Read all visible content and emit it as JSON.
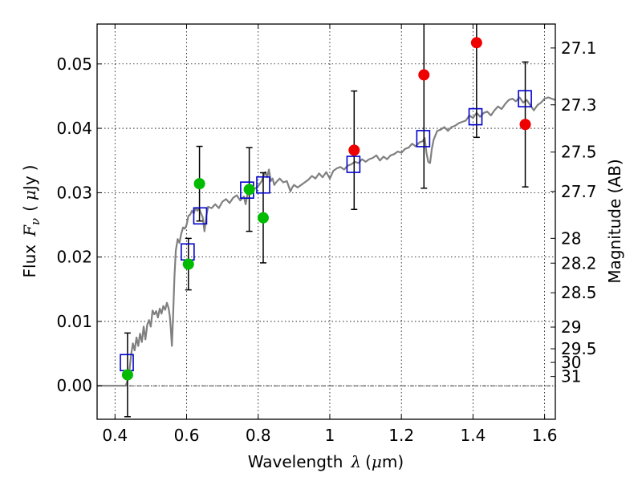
{
  "chart_data": {
    "type": "scatter",
    "title": "",
    "xlabel": "Wavelength",
    "xlabel_symbol": "λ",
    "xlabel_unit_open": "(",
    "xlabel_unit_mu": "μ",
    "xlabel_unit_rest": "m)",
    "ylabel": "Flux",
    "ylabel_symbol": "F",
    "ylabel_subscript": "ν",
    "ylabel_unit_open": "(",
    "ylabel_unit_mu": "μ",
    "ylabel_unit_rest": "Jy",
    "ylabel_unit_close": ")",
    "y2label": "Magnitude (AB)",
    "xlim": [
      0.35,
      1.63
    ],
    "ylim": [
      -0.0052,
      0.0562
    ],
    "grid": true,
    "legend": "none",
    "x_ticks": [
      0.4,
      0.6,
      0.8,
      1.0,
      1.2,
      1.4,
      1.6
    ],
    "x_tick_labels": [
      "0.4",
      "0.6",
      "0.8",
      "1",
      "1.2",
      "1.4",
      "1.6"
    ],
    "y_ticks": [
      0.0,
      0.01,
      0.02,
      0.03,
      0.04,
      0.05
    ],
    "y_tick_labels": [
      "0.00",
      "0.01",
      "0.02",
      "0.03",
      "0.04",
      "0.05"
    ],
    "y2_ticks": [
      {
        "value": 31,
        "label": "31"
      },
      {
        "value": 30,
        "label": "30"
      },
      {
        "value": 29.5,
        "label": "29.5"
      },
      {
        "value": 29,
        "label": "29"
      },
      {
        "value": 28.5,
        "label": "28.5"
      },
      {
        "value": 28.2,
        "label": "28.2"
      },
      {
        "value": 28,
        "label": "28"
      },
      {
        "value": 27.7,
        "label": "27.7"
      },
      {
        "value": 27.5,
        "label": "27.5"
      },
      {
        "value": 27.3,
        "label": "27.3"
      },
      {
        "value": 27.1,
        "label": "27.1"
      }
    ],
    "colors": {
      "template": "#808080",
      "model": "#0000cc",
      "green": "#00bb00",
      "red": "#ee0000",
      "errorbar": "#000000",
      "zero_line": "#000000",
      "grid": "#000000"
    },
    "template_spectrum": [
      [
        0.35,
        0.0
      ],
      [
        0.43,
        0.0
      ],
      [
        0.435,
        0.0008
      ],
      [
        0.44,
        0.0022
      ],
      [
        0.445,
        0.0048
      ],
      [
        0.45,
        0.0066
      ],
      [
        0.455,
        0.0055
      ],
      [
        0.46,
        0.0075
      ],
      [
        0.465,
        0.0062
      ],
      [
        0.47,
        0.0081
      ],
      [
        0.475,
        0.0068
      ],
      [
        0.48,
        0.0092
      ],
      [
        0.485,
        0.0072
      ],
      [
        0.49,
        0.0095
      ],
      [
        0.495,
        0.0102
      ],
      [
        0.5,
        0.0092
      ],
      [
        0.505,
        0.0117
      ],
      [
        0.51,
        0.0111
      ],
      [
        0.515,
        0.0116
      ],
      [
        0.52,
        0.0106
      ],
      [
        0.525,
        0.012
      ],
      [
        0.53,
        0.0112
      ],
      [
        0.535,
        0.0124
      ],
      [
        0.54,
        0.0118
      ],
      [
        0.545,
        0.0129
      ],
      [
        0.55,
        0.012
      ],
      [
        0.553,
        0.0108
      ],
      [
        0.556,
        0.0088
      ],
      [
        0.559,
        0.0062
      ],
      [
        0.562,
        0.0105
      ],
      [
        0.566,
        0.017
      ],
      [
        0.57,
        0.021
      ],
      [
        0.575,
        0.0228
      ],
      [
        0.58,
        0.0222
      ],
      [
        0.585,
        0.0236
      ],
      [
        0.59,
        0.0246
      ],
      [
        0.595,
        0.0244
      ],
      [
        0.6,
        0.025
      ],
      [
        0.605,
        0.0264
      ],
      [
        0.61,
        0.0266
      ],
      [
        0.615,
        0.0272
      ],
      [
        0.62,
        0.0268
      ],
      [
        0.625,
        0.0276
      ],
      [
        0.63,
        0.0272
      ],
      [
        0.635,
        0.0276
      ],
      [
        0.64,
        0.0268
      ],
      [
        0.645,
        0.0262
      ],
      [
        0.65,
        0.024
      ],
      [
        0.655,
        0.0264
      ],
      [
        0.66,
        0.0278
      ],
      [
        0.67,
        0.0276
      ],
      [
        0.68,
        0.0282
      ],
      [
        0.69,
        0.0276
      ],
      [
        0.7,
        0.0286
      ],
      [
        0.71,
        0.029
      ],
      [
        0.72,
        0.0284
      ],
      [
        0.73,
        0.0292
      ],
      [
        0.74,
        0.0296
      ],
      [
        0.75,
        0.0288
      ],
      [
        0.76,
        0.0294
      ],
      [
        0.765,
        0.0282
      ],
      [
        0.77,
        0.0298
      ],
      [
        0.78,
        0.0302
      ],
      [
        0.79,
        0.0306
      ],
      [
        0.8,
        0.031
      ],
      [
        0.81,
        0.0318
      ],
      [
        0.815,
        0.0326
      ],
      [
        0.82,
        0.0332
      ],
      [
        0.825,
        0.0324
      ],
      [
        0.83,
        0.0336
      ],
      [
        0.835,
        0.0318
      ],
      [
        0.84,
        0.0322
      ],
      [
        0.845,
        0.0312
      ],
      [
        0.85,
        0.0316
      ],
      [
        0.86,
        0.0322
      ],
      [
        0.87,
        0.0316
      ],
      [
        0.88,
        0.0318
      ],
      [
        0.885,
        0.031
      ],
      [
        0.89,
        0.0302
      ],
      [
        0.895,
        0.0308
      ],
      [
        0.9,
        0.0312
      ],
      [
        0.91,
        0.0308
      ],
      [
        0.92,
        0.0312
      ],
      [
        0.93,
        0.0316
      ],
      [
        0.94,
        0.032
      ],
      [
        0.95,
        0.0326
      ],
      [
        0.96,
        0.0322
      ],
      [
        0.97,
        0.033
      ],
      [
        0.98,
        0.0324
      ],
      [
        0.99,
        0.0332
      ],
      [
        1.0,
        0.0322
      ],
      [
        1.01,
        0.0334
      ],
      [
        1.02,
        0.0338
      ],
      [
        1.03,
        0.034
      ],
      [
        1.04,
        0.0336
      ],
      [
        1.05,
        0.0342
      ],
      [
        1.06,
        0.0344
      ],
      [
        1.07,
        0.0348
      ],
      [
        1.08,
        0.0346
      ],
      [
        1.09,
        0.0352
      ],
      [
        1.1,
        0.0348
      ],
      [
        1.11,
        0.0352
      ],
      [
        1.12,
        0.0354
      ],
      [
        1.13,
        0.0358
      ],
      [
        1.14,
        0.035
      ],
      [
        1.15,
        0.0356
      ],
      [
        1.16,
        0.0352
      ],
      [
        1.17,
        0.0358
      ],
      [
        1.18,
        0.036
      ],
      [
        1.19,
        0.0364
      ],
      [
        1.2,
        0.0362
      ],
      [
        1.21,
        0.0368
      ],
      [
        1.22,
        0.037
      ],
      [
        1.23,
        0.0376
      ],
      [
        1.24,
        0.0372
      ],
      [
        1.25,
        0.0378
      ],
      [
        1.26,
        0.038
      ],
      [
        1.265,
        0.0385
      ],
      [
        1.27,
        0.0362
      ],
      [
        1.275,
        0.0348
      ],
      [
        1.28,
        0.0346
      ],
      [
        1.285,
        0.0368
      ],
      [
        1.29,
        0.0382
      ],
      [
        1.3,
        0.0396
      ],
      [
        1.31,
        0.0398
      ],
      [
        1.32,
        0.0402
      ],
      [
        1.33,
        0.0396
      ],
      [
        1.34,
        0.0402
      ],
      [
        1.35,
        0.0404
      ],
      [
        1.36,
        0.0408
      ],
      [
        1.37,
        0.041
      ],
      [
        1.38,
        0.0412
      ],
      [
        1.39,
        0.042
      ],
      [
        1.4,
        0.0416
      ],
      [
        1.41,
        0.0424
      ],
      [
        1.42,
        0.0418
      ],
      [
        1.43,
        0.0424
      ],
      [
        1.44,
        0.0426
      ],
      [
        1.45,
        0.042
      ],
      [
        1.46,
        0.0428
      ],
      [
        1.47,
        0.0434
      ],
      [
        1.48,
        0.043
      ],
      [
        1.49,
        0.0438
      ],
      [
        1.5,
        0.0444
      ],
      [
        1.51,
        0.0446
      ],
      [
        1.52,
        0.0442
      ],
      [
        1.53,
        0.0448
      ],
      [
        1.54,
        0.044
      ],
      [
        1.55,
        0.0444
      ],
      [
        1.56,
        0.0436
      ],
      [
        1.57,
        0.0428
      ],
      [
        1.58,
        0.0436
      ],
      [
        1.59,
        0.044
      ],
      [
        1.6,
        0.0446
      ],
      [
        1.61,
        0.0448
      ],
      [
        1.62,
        0.0446
      ],
      [
        1.63,
        0.0444
      ]
    ],
    "model_points": [
      {
        "x": 0.433,
        "y": 0.0036
      },
      {
        "x": 0.603,
        "y": 0.0208
      },
      {
        "x": 0.638,
        "y": 0.0264
      },
      {
        "x": 0.769,
        "y": 0.0304
      },
      {
        "x": 0.814,
        "y": 0.0312
      },
      {
        "x": 1.066,
        "y": 0.0344
      },
      {
        "x": 1.261,
        "y": 0.0384
      },
      {
        "x": 1.407,
        "y": 0.0418
      },
      {
        "x": 1.545,
        "y": 0.0446
      }
    ],
    "observed_points": [
      {
        "x": 0.435,
        "y": 0.0017,
        "err": 0.0065,
        "color": "green"
      },
      {
        "x": 0.605,
        "y": 0.0189,
        "err": 0.004,
        "color": "green"
      },
      {
        "x": 0.636,
        "y": 0.0314,
        "err": 0.0058,
        "color": "green"
      },
      {
        "x": 0.775,
        "y": 0.0305,
        "err": 0.0065,
        "color": "green"
      },
      {
        "x": 0.814,
        "y": 0.0261,
        "err": 0.007,
        "color": "green"
      },
      {
        "x": 1.068,
        "y": 0.0366,
        "err": 0.0092,
        "color": "red"
      },
      {
        "x": 1.263,
        "y": 0.0483,
        "err": 0.0176,
        "color": "red"
      },
      {
        "x": 1.41,
        "y": 0.0533,
        "err": 0.0147,
        "color": "red"
      },
      {
        "x": 1.546,
        "y": 0.0406,
        "err": 0.0097,
        "color": "red"
      }
    ]
  }
}
